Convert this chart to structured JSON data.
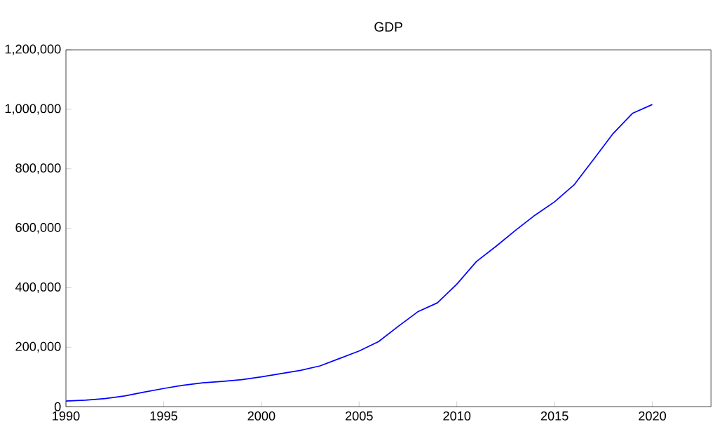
{
  "chart_data": {
    "type": "line",
    "title": "GDP",
    "x": [
      1990,
      1991,
      1992,
      1993,
      1994,
      1995,
      1996,
      1997,
      1998,
      1999,
      2000,
      2001,
      2002,
      2003,
      2004,
      2005,
      2006,
      2007,
      2008,
      2009,
      2010,
      2011,
      2012,
      2013,
      2014,
      2015,
      2016,
      2017,
      2018,
      2019,
      2020
    ],
    "series": [
      {
        "color": "#0000ff",
        "values": [
          19000,
          22000,
          27000,
          36000,
          49000,
          61000,
          72000,
          80000,
          85000,
          91000,
          100000,
          111000,
          122000,
          137000,
          162000,
          187000,
          219000,
          270000,
          319000,
          349000,
          412000,
          488000,
          539000,
          593000,
          644000,
          689000,
          746000,
          832000,
          919000,
          987000,
          1016000
        ]
      }
    ],
    "xlim": [
      1990,
      2023
    ],
    "xticks": [
      1990,
      1995,
      2000,
      2005,
      2010,
      2015,
      2020
    ],
    "ylim": [
      0,
      1200000
    ],
    "yticks": [
      {
        "value": 0,
        "label": "0"
      },
      {
        "value": 200000,
        "label": "200,000"
      },
      {
        "value": 400000,
        "label": "400,000"
      },
      {
        "value": 600000,
        "label": "600,000"
      },
      {
        "value": 800000,
        "label": "800,000"
      },
      {
        "value": 1000000,
        "label": "1,000,000"
      },
      {
        "value": 1200000,
        "label": "1,200,000"
      }
    ],
    "grid": false,
    "marker": "none",
    "line_style": "solid"
  }
}
